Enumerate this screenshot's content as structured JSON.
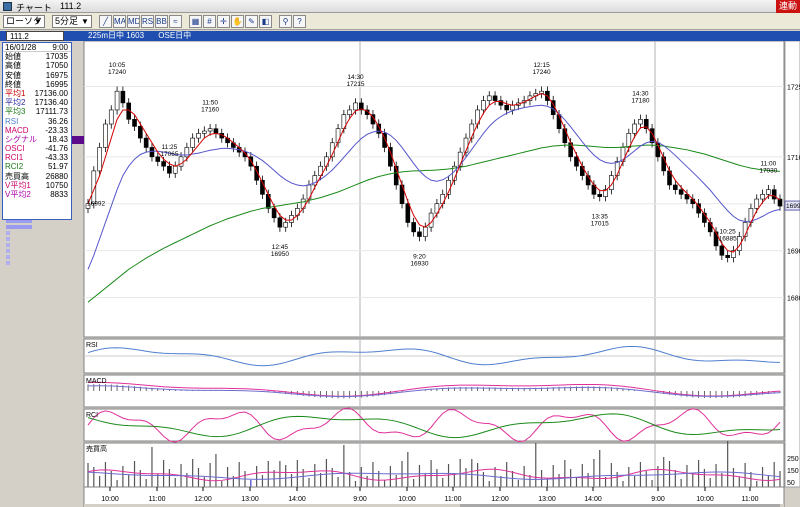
{
  "window": {
    "title": "チャート",
    "symbol_title": "111.2",
    "status_badge": "連動"
  },
  "toolbar": {
    "chart_type": "ローソク",
    "interval": "5分足",
    "buttons": [
      {
        "name": "draw-line-icon",
        "glyph": "╱"
      },
      {
        "name": "ma-icon",
        "glyph": "MA"
      },
      {
        "name": "macd-icon",
        "glyph": "MD"
      },
      {
        "name": "rsi-icon",
        "glyph": "RS"
      },
      {
        "name": "bb-icon",
        "glyph": "BB"
      },
      {
        "name": "trend-icon",
        "glyph": "≈"
      },
      {
        "name": "zoom-icon",
        "glyph": "▦"
      },
      {
        "name": "grid-icon",
        "glyph": "#"
      },
      {
        "name": "cursor-icon",
        "glyph": "✛"
      },
      {
        "name": "hand-icon",
        "glyph": "✋"
      },
      {
        "name": "pen-icon",
        "glyph": "✎"
      },
      {
        "name": "color-icon",
        "glyph": "◧"
      },
      {
        "name": "magnify-icon",
        "glyph": "⚲"
      },
      {
        "name": "help-icon",
        "glyph": "?"
      }
    ]
  },
  "symbol_bar": {
    "input": "111.2",
    "contract": "225m日中 1603",
    "exchange": "OSE日中"
  },
  "info_panel": {
    "date": "16/01/28",
    "time": "9:00",
    "rows": [
      {
        "label": "始値",
        "value": "17035",
        "color": "#000000"
      },
      {
        "label": "高値",
        "value": "17050",
        "color": "#000000"
      },
      {
        "label": "安値",
        "value": "16975",
        "color": "#000000"
      },
      {
        "label": "終値",
        "value": "16995",
        "color": "#000000"
      },
      {
        "label": "平均1",
        "value": "17136.00",
        "color": "#cc0000"
      },
      {
        "label": "平均2",
        "value": "17136.40",
        "color": "#2a2aa0"
      },
      {
        "label": "平均3",
        "value": "17111.73",
        "color": "#1a7a1a"
      },
      {
        "label": "RSI",
        "value": "36.26",
        "color": "#4f7fd0"
      },
      {
        "label": "MACD",
        "value": "-23.33",
        "color": "#cc0066"
      },
      {
        "label": "シグナル",
        "value": "18.43",
        "color": "#aa00aa"
      },
      {
        "label": "OSCI",
        "value": "-41.76",
        "color": "#cc0066"
      },
      {
        "label": "RCI1",
        "value": "-43.33",
        "color": "#cc0066"
      },
      {
        "label": "RCI2",
        "value": "51.97",
        "color": "#1a7a1a"
      },
      {
        "label": "売買高",
        "value": "26880",
        "color": "#000000"
      },
      {
        "label": "V平均1",
        "value": "10750",
        "color": "#cc0066"
      },
      {
        "label": "V平均2",
        "value": "8833",
        "color": "#aa00aa"
      }
    ]
  },
  "chart_data": {
    "type": "candlestick",
    "price_ticks": [
      "17250",
      "17100",
      "17000",
      "16900",
      "16800"
    ],
    "price_range": [
      16720,
      17330
    ],
    "current_price_label": "16995",
    "time_labels": [
      "10:00",
      "11:00",
      "12:00",
      "13:00",
      "14:00",
      "9:00",
      "10:00",
      "11:00",
      "12:00",
      "13:00",
      "14:00",
      "9:00",
      "10:00",
      "11:00"
    ],
    "volume_ticks": [
      "250",
      "150",
      "50"
    ],
    "panels": [
      "RSI",
      "MACD",
      "RCI",
      "売買高"
    ],
    "annotations": [
      {
        "time": "10:05",
        "price": "17240"
      },
      {
        "time": "11:50",
        "price": "17160"
      },
      {
        "time": "11:25",
        "price": "17065"
      },
      {
        "time": "12:45",
        "price": "16950"
      },
      {
        "time": "14:30",
        "price": "17215"
      },
      {
        "time": "9:20",
        "price": "16930"
      },
      {
        "time": "12:15",
        "price": "17240"
      },
      {
        "time": "13:35",
        "price": "17015"
      },
      {
        "time": "14:30",
        "price": "17180"
      },
      {
        "time": "11:00",
        "price": "17030"
      },
      {
        "time": "10:25",
        "price": "16885"
      }
    ],
    "first_close_label": "16992",
    "closes": [
      17000,
      17070,
      17120,
      17170,
      17200,
      17240,
      17215,
      17180,
      17165,
      17140,
      17120,
      17100,
      17090,
      17080,
      17065,
      17080,
      17100,
      17120,
      17140,
      17150,
      17155,
      17160,
      17150,
      17140,
      17130,
      17120,
      17110,
      17100,
      17080,
      17050,
      17020,
      16990,
      16970,
      16950,
      16960,
      16975,
      16990,
      17010,
      17040,
      17060,
      17080,
      17100,
      17130,
      17160,
      17190,
      17200,
      17215,
      17200,
      17190,
      17170,
      17150,
      17120,
      17080,
      17040,
      17000,
      16960,
      16940,
      16930,
      16950,
      16980,
      17000,
      17020,
      17050,
      17080,
      17110,
      17140,
      17170,
      17200,
      17220,
      17230,
      17220,
      17210,
      17200,
      17210,
      17215,
      17220,
      17230,
      17235,
      17240,
      17220,
      17190,
      17160,
      17130,
      17100,
      17080,
      17060,
      17040,
      17020,
      17015,
      17030,
      17060,
      17090,
      17120,
      17150,
      17170,
      17180,
      17160,
      17130,
      17100,
      17070,
      17040,
      17030,
      17020,
      17010,
      17000,
      16980,
      16960,
      16940,
      16910,
      16890,
      16885,
      16900,
      16930,
      16960,
      16990,
      17010,
      17020,
      17030,
      17010,
      16995
    ],
    "ma_fast": [
      17000,
      17030,
      17060,
      17100,
      17140,
      17180,
      17200,
      17200,
      17190,
      17170,
      17150,
      17130,
      17110,
      17095,
      17085,
      17080,
      17085,
      17095,
      17110,
      17125,
      17140,
      17148,
      17150,
      17147,
      17140,
      17130,
      17120,
      17108,
      17092,
      17070,
      17045,
      17020,
      16995,
      16975,
      16965,
      16965,
      16975,
      16990,
      17010,
      17035,
      17058,
      17080,
      17105,
      17132,
      17160,
      17182,
      17198,
      17202,
      17198,
      17185,
      17165,
      17140,
      17110,
      17075,
      17040,
      17005,
      16975,
      16955,
      16950,
      16960,
      16978,
      17000,
      17025,
      17053,
      17083,
      17113,
      17143,
      17170,
      17193,
      17210,
      17218,
      17218,
      17213,
      17210,
      17212,
      17217,
      17223,
      17230,
      17235,
      17230,
      17212,
      17188,
      17160,
      17130,
      17105,
      17080,
      17058,
      17040,
      17028,
      17028,
      17040,
      17062,
      17090,
      17118,
      17143,
      17162,
      17164,
      17150,
      17125,
      17098,
      17070,
      17050,
      17035,
      17022,
      17010,
      16995,
      16978,
      16960,
      16938,
      16915,
      16900,
      16897,
      16910,
      16933,
      16960,
      16985,
      17003,
      17017,
      17017,
      17008
    ],
    "ma_mid": [
      16860,
      16890,
      16925,
      16960,
      16995,
      17030,
      17060,
      17080,
      17095,
      17105,
      17110,
      17112,
      17112,
      17110,
      17108,
      17105,
      17104,
      17104,
      17106,
      17108,
      17111,
      17114,
      17116,
      17118,
      17118,
      17117,
      17115,
      17112,
      17107,
      17100,
      17092,
      17082,
      17071,
      17060,
      17051,
      17044,
      17040,
      17038,
      17040,
      17045,
      17052,
      17061,
      17072,
      17085,
      17099,
      17113,
      17127,
      17139,
      17148,
      17153,
      17155,
      17153,
      17146,
      17135,
      17120,
      17103,
      17086,
      17070,
      17058,
      17050,
      17048,
      17051,
      17058,
      17069,
      17083,
      17099,
      17116,
      17133,
      17150,
      17165,
      17177,
      17186,
      17193,
      17198,
      17202,
      17205,
      17207,
      17209,
      17210,
      17208,
      17202,
      17192,
      17179,
      17164,
      17148,
      17132,
      17117,
      17104,
      17094,
      17088,
      17086,
      17088,
      17094,
      17103,
      17113,
      17123,
      17130,
      17133,
      17131,
      17124,
      17114,
      17103,
      17091,
      17079,
      17067,
      17055,
      17042,
      17029,
      17014,
      16999,
      16985,
      16973,
      16965,
      16962,
      16963,
      16967,
      16973,
      16980,
      16985,
      16988
    ],
    "ma_slow": [
      16790,
      16800,
      16810,
      16820,
      16830,
      16840,
      16850,
      16860,
      16868,
      16876,
      16884,
      16891,
      16898,
      16905,
      16911,
      16917,
      16923,
      16929,
      16935,
      16941,
      16947,
      16953,
      16958,
      16963,
      16968,
      16972,
      16976,
      16980,
      16984,
      16987,
      16990,
      16992,
      16994,
      16996,
      16998,
      17000,
      17002,
      17004,
      17007,
      17010,
      17013,
      17017,
      17021,
      17025,
      17030,
      17035,
      17040,
      17045,
      17050,
      17054,
      17058,
      17061,
      17064,
      17066,
      17068,
      17069,
      17070,
      17070,
      17071,
      17071,
      17072,
      17073,
      17074,
      17076,
      17078,
      17080,
      17083,
      17086,
      17089,
      17092,
      17095,
      17098,
      17101,
      17104,
      17107,
      17110,
      17113,
      17116,
      17119,
      17121,
      17123,
      17124,
      17125,
      17125,
      17125,
      17124,
      17123,
      17122,
      17121,
      17120,
      17120,
      17120,
      17121,
      17122,
      17123,
      17124,
      17125,
      17125,
      17124,
      17123,
      17121,
      17119,
      17117,
      17115,
      17112,
      17109,
      17106,
      17102,
      17098,
      17094,
      17090,
      17086,
      17082,
      17079,
      17076,
      17074,
      17072,
      17071,
      17070,
      17069
    ]
  },
  "colors": {
    "ma_fast": "#d40000",
    "ma_mid": "#5555cc",
    "ma_slow": "#1a8a1a",
    "rsi": "#4f7fd0",
    "macd": "#e0309a",
    "rci1": "#e0309a",
    "rci2": "#1a8a1a",
    "vol_ma1": "#e0309a",
    "vol_ma2": "#6a6ad0"
  }
}
